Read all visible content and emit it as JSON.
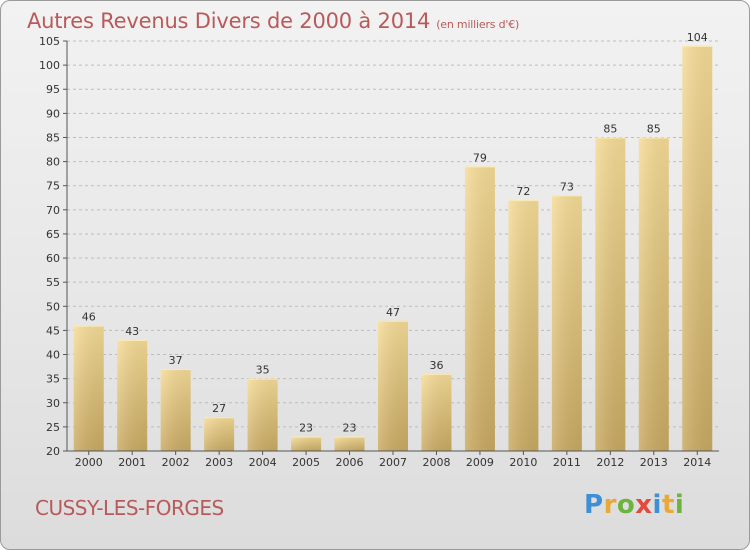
{
  "header": {
    "title": "Autres Revenus Divers de 2000 à 2014",
    "unit": "(en milliers d'€)"
  },
  "footer": {
    "commune": "CUSSY-LES-FORGES",
    "logo_text": "Proxiti"
  },
  "colors": {
    "title": "#b85a5a",
    "bar_top": "#f6dc97",
    "bar_bottom": "#c9aa62",
    "grid": "#bdbdbd"
  },
  "chart_data": {
    "type": "bar",
    "title": "Autres Revenus Divers de 2000 à 2014",
    "subtitle": "(en milliers d'€)",
    "xlabel": "",
    "ylabel": "",
    "categories": [
      "2000",
      "2001",
      "2002",
      "2003",
      "2004",
      "2005",
      "2006",
      "2007",
      "2008",
      "2009",
      "2010",
      "2011",
      "2012",
      "2013",
      "2014"
    ],
    "values": [
      46,
      43,
      37,
      27,
      35,
      23,
      23,
      47,
      36,
      79,
      72,
      73,
      85,
      85,
      104
    ],
    "ylim": [
      20,
      105
    ],
    "yticks": [
      20,
      25,
      30,
      35,
      40,
      45,
      50,
      55,
      60,
      65,
      70,
      75,
      80,
      85,
      90,
      95,
      100,
      105
    ],
    "grid": true,
    "data_labels": true
  }
}
